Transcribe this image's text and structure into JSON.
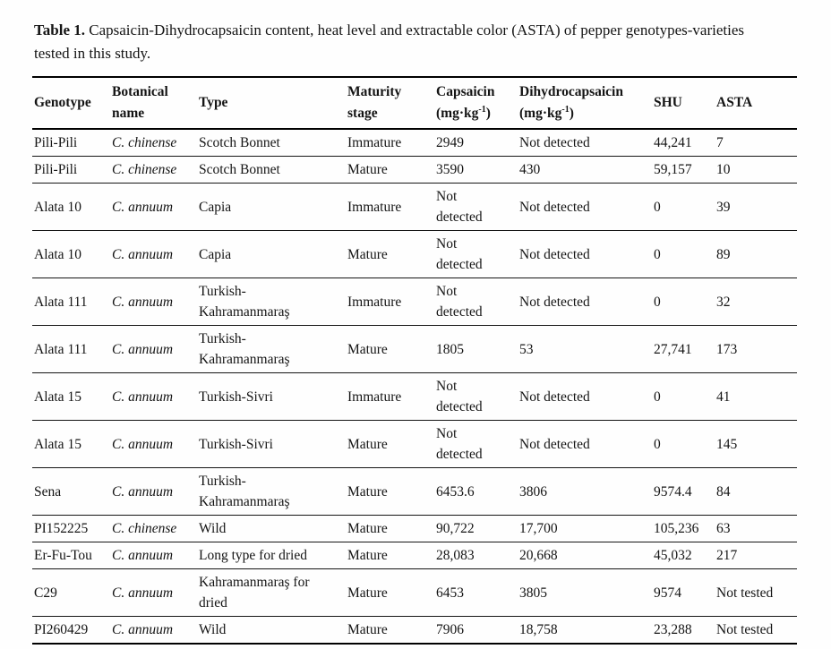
{
  "caption": {
    "label": "Table 1.",
    "text": "Capsaicin-Dihydrocapsaicin content, heat level and extractable color (ASTA) of pepper genotypes-varieties tested in this study."
  },
  "table": {
    "columns": [
      {
        "key": "genotype",
        "label": "Genotype"
      },
      {
        "key": "botanical-name",
        "label": "Botanical name",
        "italic": true
      },
      {
        "key": "type",
        "label": "Type"
      },
      {
        "key": "maturity-stage",
        "label": "Maturity stage"
      },
      {
        "key": "capsaicin",
        "label": "Capsaicin",
        "unit_base": "(mg·kg",
        "unit_sup": "-1",
        "unit_close": ")"
      },
      {
        "key": "dihydrocapsaicin",
        "label": "Dihydrocapsaicin",
        "unit_base": "(mg·kg",
        "unit_sup": "-1",
        "unit_close": ")"
      },
      {
        "key": "shu",
        "label": "SHU"
      },
      {
        "key": "asta",
        "label": "ASTA"
      }
    ],
    "rows": [
      [
        "Pili-Pili",
        "C. chinense",
        "Scotch Bonnet",
        "Immature",
        "2949",
        "Not detected",
        "44,241",
        "7"
      ],
      [
        "Pili-Pili",
        "C. chinense",
        "Scotch Bonnet",
        "Mature",
        "3590",
        "430",
        "59,157",
        "10"
      ],
      [
        "Alata 10",
        "C. annuum",
        "Capia",
        "Immature",
        "Not detected",
        "Not detected",
        "0",
        "39"
      ],
      [
        "Alata 10",
        "C. annuum",
        "Capia",
        "Mature",
        "Not detected",
        "Not detected",
        "0",
        "89"
      ],
      [
        "Alata 111",
        "C. annuum",
        "Turkish-Kahramanmaraş",
        "Immature",
        "Not detected",
        "Not detected",
        "0",
        "32"
      ],
      [
        "Alata 111",
        "C. annuum",
        "Turkish-Kahramanmaraş",
        "Mature",
        "1805",
        "53",
        "27,741",
        "173"
      ],
      [
        "Alata 15",
        "C. annuum",
        "Turkish-Sivri",
        "Immature",
        "Not detected",
        "Not detected",
        "0",
        "41"
      ],
      [
        "Alata 15",
        "C. annuum",
        "Turkish-Sivri",
        "Mature",
        "Not detected",
        "Not detected",
        "0",
        "145"
      ],
      [
        "Sena",
        "C. annuum",
        "Turkish-Kahramanmaraş",
        "Mature",
        "6453.6",
        "3806",
        "9574.4",
        "84"
      ],
      [
        "PI152225",
        "C. chinense",
        "Wild",
        "Mature",
        "90,722",
        "17,700",
        "105,236",
        "63"
      ],
      [
        "Er-Fu-Tou",
        "C. annuum",
        "Long type for dried",
        "Mature",
        "28,083",
        "20,668",
        "45,032",
        "217"
      ],
      [
        "C29",
        "C. annuum",
        "Kahramanmaraş for dried",
        "Mature",
        "6453",
        "3805",
        "9574",
        "Not tested"
      ],
      [
        "PI260429",
        "C. annuum",
        "Wild",
        "Mature",
        "7906",
        "18,758",
        "23,288",
        "Not tested"
      ]
    ]
  }
}
